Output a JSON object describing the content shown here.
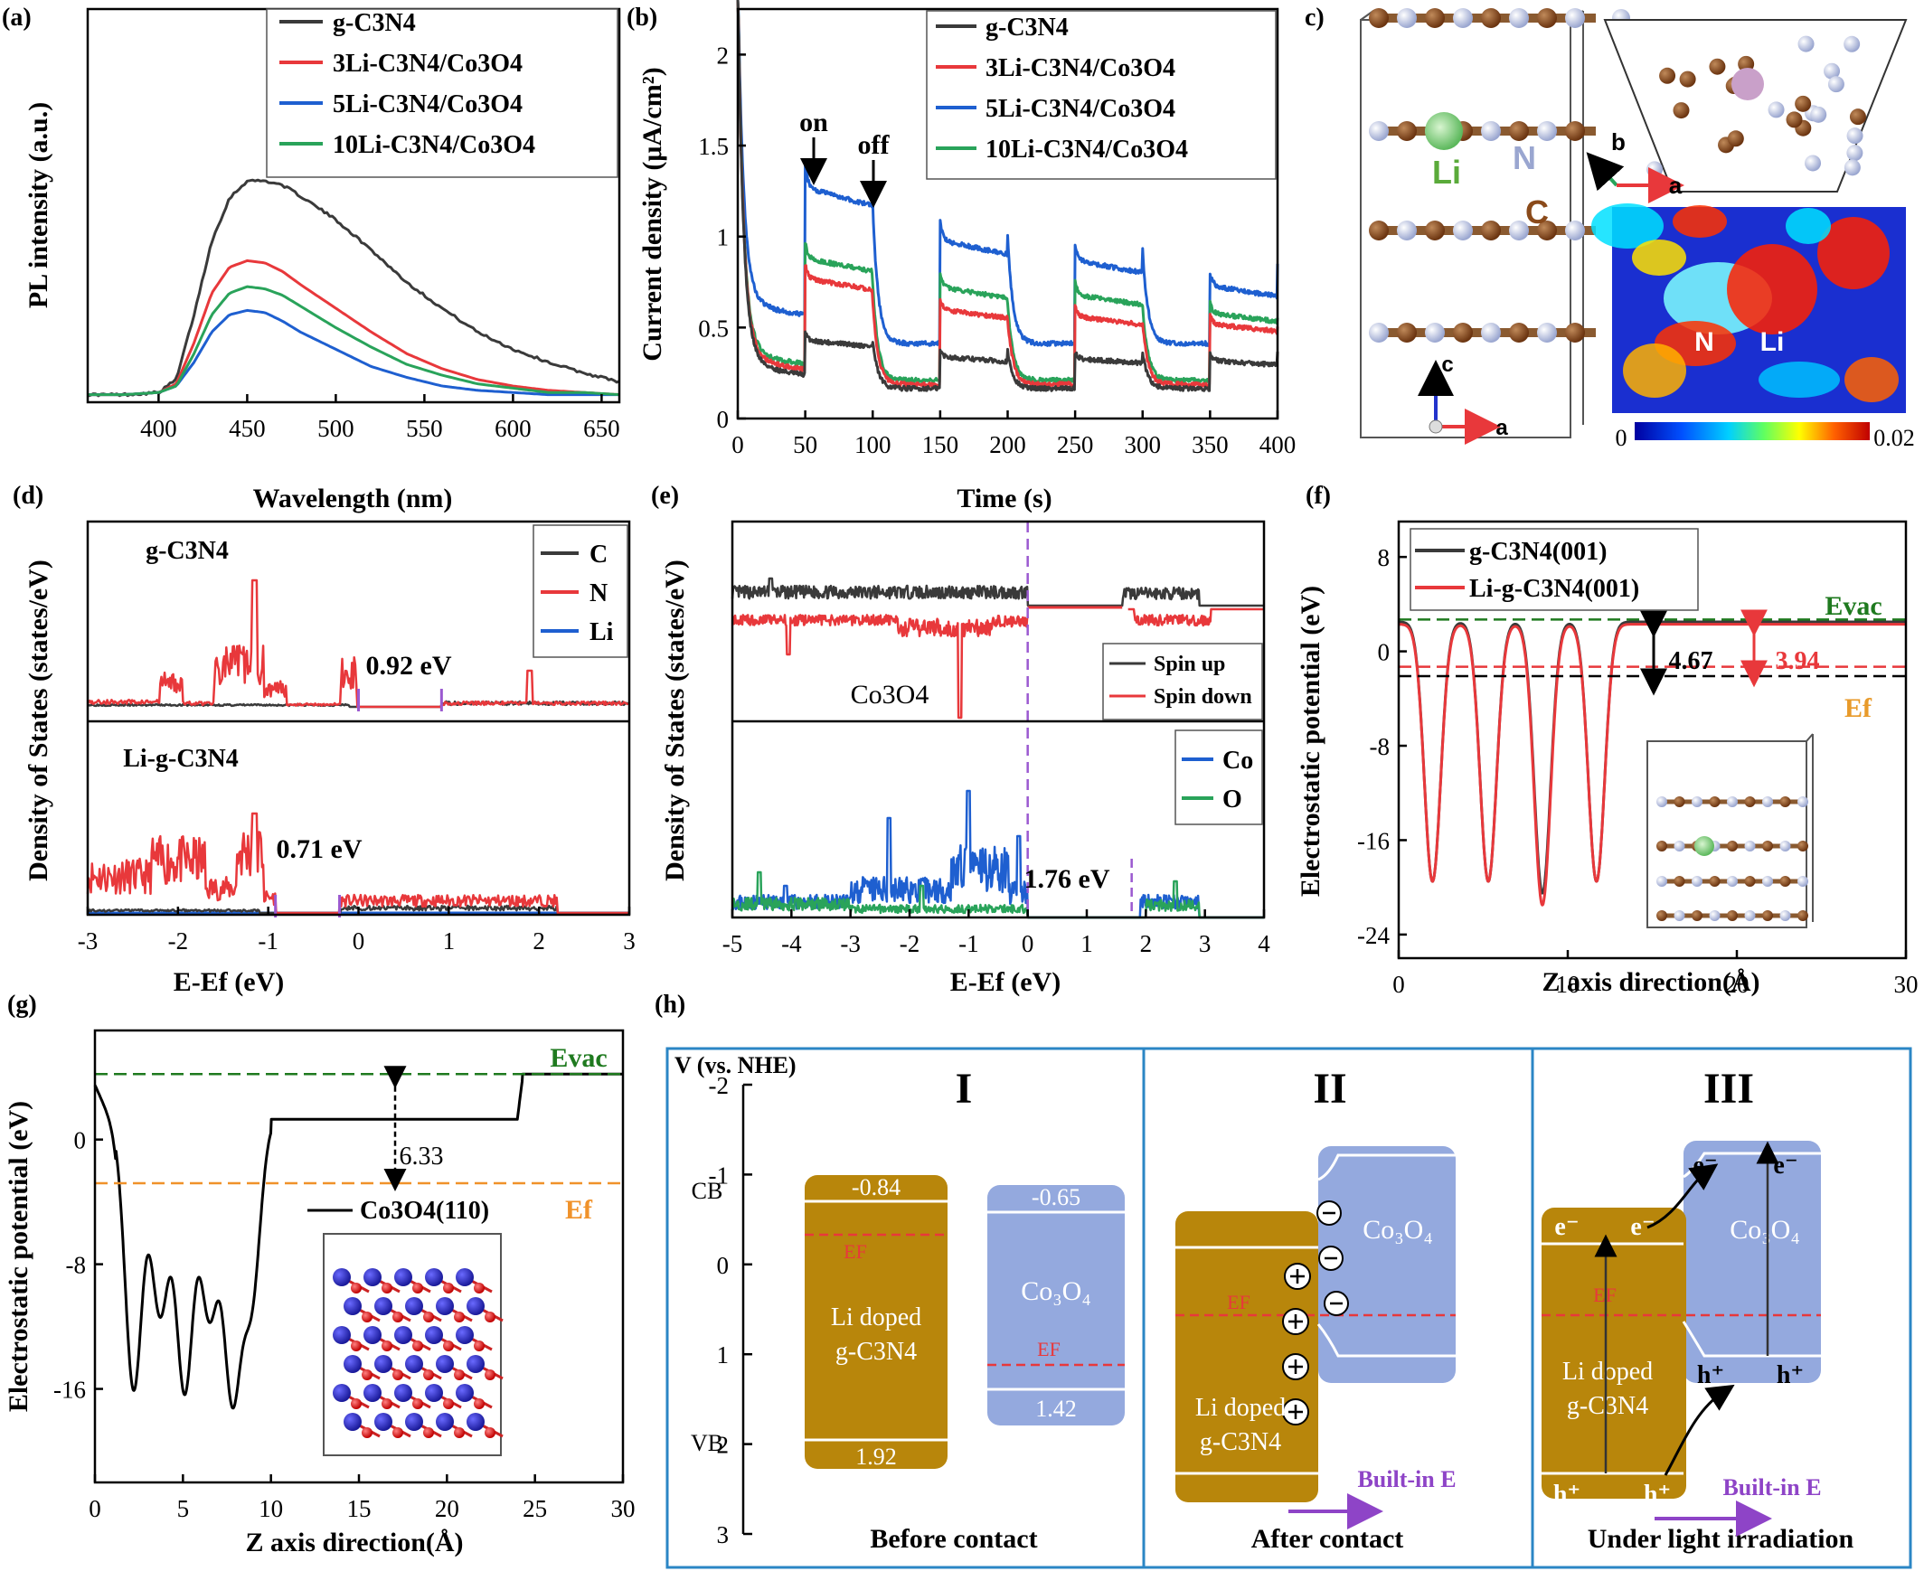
{
  "panels": [
    {
      "letter": "(a)"
    },
    {
      "letter": "(b)"
    },
    {
      "letter": "c)"
    },
    {
      "letter": "(d)"
    },
    {
      "letter": "(e)"
    },
    {
      "letter": "(f)"
    },
    {
      "letter": "(g)"
    },
    {
      "letter": "(h)"
    }
  ],
  "colors": {
    "black": "#3a3a3a",
    "red": "#e8383b",
    "blue": "#1e5fd0",
    "green": "#29a35a",
    "purple": "#9b59d0",
    "gold": "#b8860b",
    "lightblue": "#94a9de",
    "frame": "#2b86c5"
  },
  "chart_data": [
    {
      "id": "a",
      "type": "line",
      "xlabel": "Wavelength (nm)",
      "ylabel": "PL intensity (a.u.)",
      "xlim": [
        360,
        660
      ],
      "xticks": [
        400,
        450,
        500,
        550,
        600,
        650
      ],
      "ylim": [
        0,
        1.05
      ],
      "series": [
        {
          "name": "g-C3N4",
          "color": "#3a3a3a",
          "x": [
            360,
            380,
            400,
            410,
            420,
            430,
            440,
            450,
            460,
            470,
            480,
            500,
            520,
            540,
            560,
            580,
            600,
            620,
            640,
            660
          ],
          "y": [
            0.01,
            0.01,
            0.02,
            0.08,
            0.38,
            0.72,
            0.92,
            1.0,
            1.0,
            0.98,
            0.93,
            0.82,
            0.68,
            0.53,
            0.41,
            0.3,
            0.22,
            0.16,
            0.11,
            0.07
          ]
        },
        {
          "name": "3Li-C3N4/Co3O4",
          "color": "#e8383b",
          "x": [
            360,
            380,
            400,
            410,
            420,
            430,
            440,
            450,
            460,
            470,
            480,
            500,
            520,
            540,
            560,
            580,
            600,
            620,
            640,
            660
          ],
          "y": [
            0.01,
            0.01,
            0.02,
            0.06,
            0.25,
            0.48,
            0.6,
            0.63,
            0.62,
            0.58,
            0.52,
            0.41,
            0.3,
            0.2,
            0.13,
            0.08,
            0.05,
            0.03,
            0.02,
            0.01
          ]
        },
        {
          "name": "5Li-C3N4/Co3O4",
          "color": "#1e5fd0",
          "x": [
            360,
            380,
            400,
            410,
            420,
            430,
            440,
            450,
            460,
            470,
            480,
            500,
            520,
            540,
            560,
            580,
            600,
            620,
            640,
            660
          ],
          "y": [
            0.01,
            0.01,
            0.02,
            0.05,
            0.16,
            0.3,
            0.38,
            0.4,
            0.39,
            0.35,
            0.3,
            0.22,
            0.14,
            0.09,
            0.05,
            0.03,
            0.02,
            0.01,
            0.01,
            0.01
          ]
        },
        {
          "name": "10Li-C3N4/Co3O4",
          "color": "#29a35a",
          "x": [
            360,
            380,
            400,
            410,
            420,
            430,
            440,
            450,
            460,
            470,
            480,
            500,
            520,
            540,
            560,
            580,
            600,
            620,
            640,
            660
          ],
          "y": [
            0.01,
            0.01,
            0.02,
            0.05,
            0.2,
            0.38,
            0.48,
            0.51,
            0.5,
            0.47,
            0.42,
            0.32,
            0.23,
            0.15,
            0.1,
            0.06,
            0.04,
            0.02,
            0.02,
            0.01
          ]
        }
      ]
    },
    {
      "id": "b",
      "type": "line",
      "xlabel": "Time (s)",
      "ylabel": "Current density (μA/cm²)",
      "xlim": [
        0,
        400
      ],
      "xticks": [
        0,
        50,
        100,
        150,
        200,
        250,
        300,
        350,
        400
      ],
      "ylim": [
        0,
        2.3
      ],
      "yticks": [
        0,
        0.5,
        1,
        1.5,
        2
      ],
      "annotations": [
        "on",
        "off"
      ],
      "series": [
        {
          "name": "g-C3N4",
          "color": "#3a3a3a",
          "dark": 0.22,
          "jump": 0.43,
          "light_end": 0.4,
          "cycles": [
            0.43,
            0.34,
            0.33,
            0.32
          ]
        },
        {
          "name": "3Li-C3N4/Co3O4",
          "color": "#e8383b",
          "dark": 0.25,
          "cycles": [
            0.77,
            0.6,
            0.56,
            0.52
          ]
        },
        {
          "name": "5Li-C3N4/Co3O4",
          "color": "#1e5fd0",
          "dark": 0.55,
          "cycles": [
            1.27,
            0.98,
            0.87,
            0.73
          ]
        },
        {
          "name": "10Li-C3N4/Co3O4",
          "color": "#29a35a",
          "dark": 0.28,
          "cycles": [
            0.88,
            0.72,
            0.68,
            0.58
          ]
        }
      ]
    },
    {
      "id": "d",
      "type": "line",
      "xlabel": "E-Ef (eV)",
      "ylabel": "Density of States (states/eV)",
      "xlim": [
        -3,
        3
      ],
      "xticks": [
        -3,
        -2,
        -1,
        0,
        1,
        2,
        3
      ],
      "subplots": [
        {
          "label": "g-C3N4",
          "gap": "0.92 eV",
          "gap_edges": [
            0,
            0.92
          ]
        },
        {
          "label": "Li-g-C3N4",
          "gap": "0.71 eV",
          "gap_edges": [
            -0.92,
            -0.21
          ]
        }
      ],
      "legend": [
        {
          "name": "C",
          "color": "#3a3a3a"
        },
        {
          "name": "N",
          "color": "#e8383b"
        },
        {
          "name": "Li",
          "color": "#1e5fd0"
        }
      ]
    },
    {
      "id": "e",
      "type": "line",
      "xlabel": "E-Ef (eV)",
      "ylabel": "Density of States (states/eV)",
      "xlim": [
        -5,
        4
      ],
      "xticks": [
        -5,
        -4,
        -3,
        -2,
        -1,
        0,
        1,
        2,
        3,
        4
      ],
      "subplots": [
        {
          "label": "Co3O4",
          "legend": [
            {
              "name": "Spin up",
              "color": "#3a3a3a"
            },
            {
              "name": "Spin down",
              "color": "#e8383b"
            }
          ]
        },
        {
          "gap": "1.76 eV",
          "gap_edges": [
            0,
            1.76
          ],
          "legend": [
            {
              "name": "Co",
              "color": "#1e5fd0"
            },
            {
              "name": "O",
              "color": "#29a35a"
            }
          ]
        }
      ]
    },
    {
      "id": "f",
      "type": "line",
      "xlabel": "Z axis direction(Å)",
      "ylabel": "Electrostatic potential (eV)",
      "xlim": [
        0,
        30
      ],
      "xticks": [
        0,
        10,
        20,
        30
      ],
      "ylim": [
        -26,
        11
      ],
      "yticks": [
        -24,
        -16,
        -8,
        0,
        8
      ],
      "series": [
        {
          "name": "g-C3N4(001)",
          "color": "#3a3a3a",
          "wells": [
            2,
            5.3,
            8.5,
            11.7
          ],
          "depths": [
            -19.5,
            -19.5,
            -20.5,
            -19.5
          ],
          "plateau": 2.5
        },
        {
          "name": "Li-g-C3N4(001)",
          "color": "#e8383b",
          "wells": [
            2,
            5.3,
            8.5,
            11.7
          ],
          "depths": [
            -19.5,
            -19.5,
            -21.5,
            -19.5
          ],
          "plateau": 2.3
        }
      ],
      "levels": {
        "evac": 2.7,
        "ef_red": -1.3,
        "ef_black": -2.1
      },
      "level_labels": {
        "evac": "Evac",
        "ef": "Ef"
      },
      "values": [
        "4.67",
        "3.94"
      ]
    },
    {
      "id": "g",
      "type": "line",
      "xlabel": "Z axis direction(Å)",
      "ylabel": "Electrostatic potential (eV)",
      "xlim": [
        0,
        30
      ],
      "xticks": [
        0,
        5,
        10,
        15,
        20,
        25,
        30
      ],
      "ylim": [
        -22,
        7
      ],
      "yticks": [
        -16,
        -8,
        0
      ],
      "series": [
        {
          "name": "Co3O4(110)",
          "color": "#000000",
          "wells": [
            2.2,
            3.7,
            5.1,
            6.5,
            7.8,
            8.9
          ],
          "depths": [
            -16,
            -11,
            -16,
            -11,
            -16,
            -10
          ],
          "plateau": 1.3,
          "vac": 4.2
        }
      ],
      "levels": {
        "evac": 4.2,
        "ef": -2.8
      },
      "level_labels": {
        "evac": "Evac",
        "ef": "Ef"
      },
      "values": [
        "6.33"
      ]
    },
    {
      "id": "h",
      "type": "diagram",
      "ylabel": "V (vs. NHE)",
      "ylim": [
        -2,
        3
      ],
      "yticks": [
        "-2",
        "-1",
        "0",
        "1",
        "2",
        "3"
      ],
      "band_labels": [
        "CB",
        "VB"
      ],
      "stages": [
        {
          "numeral": "I",
          "caption": "Before contact"
        },
        {
          "numeral": "II",
          "caption": "After contact"
        },
        {
          "numeral": "III",
          "caption": "Under light irradiation"
        }
      ],
      "li_label": [
        "Li doped",
        "g-C3N4"
      ],
      "co_label": "Co₃O₄",
      "values": {
        "li_cb": "-0.84",
        "li_vb": "1.92",
        "co_cb": "-0.65",
        "co_vb": "1.42"
      },
      "ef_label": "EF",
      "builtin": "Built-in  E",
      "carriers": {
        "electron": "e⁻",
        "hole": "h⁺"
      }
    }
  ],
  "structure_c": {
    "atoms": [
      "Li",
      "N",
      "C"
    ],
    "axes": [
      "b",
      "a",
      "c",
      "a"
    ],
    "colorbar": [
      "0",
      "0.02"
    ],
    "map_labels": [
      "N",
      "Li"
    ]
  }
}
